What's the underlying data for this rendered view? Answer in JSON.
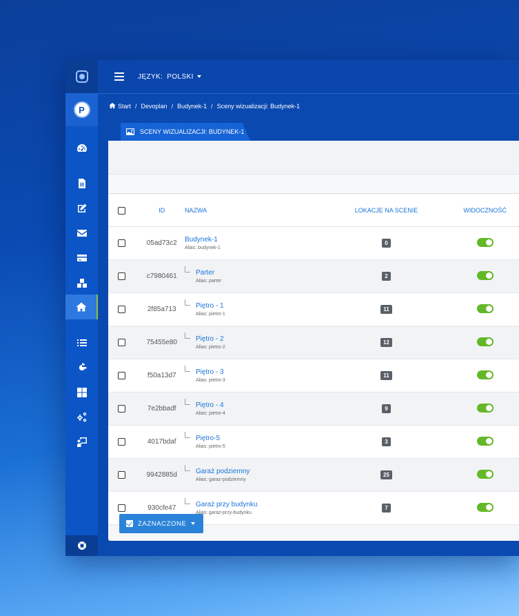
{
  "header": {
    "language_label": "JĘZYK:",
    "language_value": "POLSKI"
  },
  "sidebar": {
    "avatar_letter": "P",
    "icons": [
      "dashboard-icon",
      "document-icon",
      "edit-icon",
      "envelope-icon",
      "credit-card-icon",
      "boxes-icon",
      "home-icon",
      "list-icon",
      "google-icon",
      "windows-icon",
      "gears-icon",
      "presentation-icon"
    ],
    "active": "home-icon",
    "bottom_icon": "lifebuoy-icon"
  },
  "breadcrumb": [
    "Start",
    "Devoplan",
    "Budynek-1",
    "Sceny wizualizacji: Budynek-1"
  ],
  "tab": {
    "label": "SCENY WIZUALIZACJI: BUDYNEK-1"
  },
  "table": {
    "headers": {
      "id": "ID",
      "name": "NAZWA",
      "locations": "LOKACJE NA SCENIE",
      "visibility": "WIDOCZNOŚĆ"
    },
    "rows": [
      {
        "id": "05ad73c2",
        "name": "Budynek-1",
        "alias": "Alias: budynek-1",
        "locations": "0",
        "visible": true
      },
      {
        "id": "c7980461",
        "name": "Parter",
        "alias": "Alias: parter",
        "locations": "2",
        "visible": true
      },
      {
        "id": "2f85a713",
        "name": "Piętro - 1",
        "alias": "Alias: pietro-1",
        "locations": "11",
        "visible": true
      },
      {
        "id": "75455e80",
        "name": "Piętro - 2",
        "alias": "Alias: pietro-2",
        "locations": "12",
        "visible": true
      },
      {
        "id": "f50a13d7",
        "name": "Piętro - 3",
        "alias": "Alias: pietro-3",
        "locations": "11",
        "visible": true
      },
      {
        "id": "7e2bbadf",
        "name": "Piętro - 4",
        "alias": "Alias: pietro-4",
        "locations": "9",
        "visible": true
      },
      {
        "id": "4017bdaf",
        "name": "Piętro-5",
        "alias": "Alias: pietro-5",
        "locations": "3",
        "visible": true
      },
      {
        "id": "9942885d",
        "name": "Garaż podziemny",
        "alias": "Alias: garaz-podziemny",
        "locations": "25",
        "visible": true
      },
      {
        "id": "930cfe47",
        "name": "Garaż przy budynku",
        "alias": "Alias: garaz-przy-budynku",
        "locations": "7",
        "visible": true
      }
    ]
  },
  "bulk_action": {
    "label": "ZAZNACZONE"
  },
  "colors": {
    "accent": "#1a73d9",
    "toggle_on": "#63b827",
    "sidebar": "#0b55c7"
  }
}
